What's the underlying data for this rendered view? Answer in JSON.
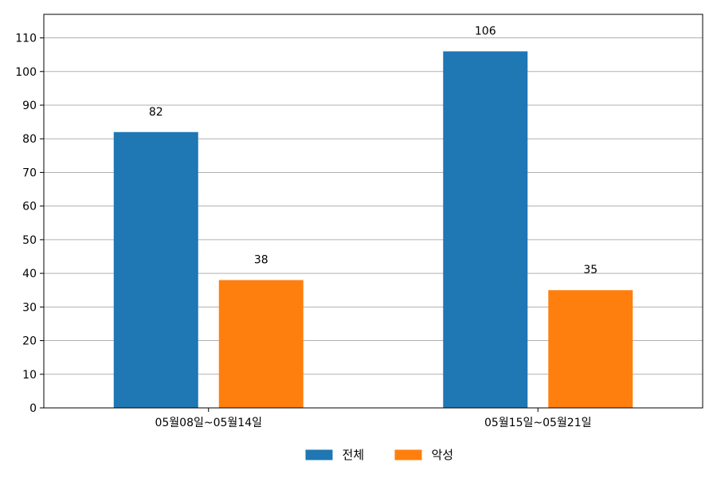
{
  "chart_data": {
    "type": "bar",
    "title": "",
    "xlabel": "",
    "ylabel": "",
    "categories": [
      "05월08일~05월14일",
      "05월15일~05월21일"
    ],
    "series": [
      {
        "name": "전체",
        "values": [
          82,
          106
        ],
        "color": "#1f77b4"
      },
      {
        "name": "악성",
        "values": [
          38,
          35
        ],
        "color": "#ff7f0e"
      }
    ],
    "ylim": [
      0,
      117
    ],
    "yticks": [
      0,
      10,
      20,
      30,
      40,
      50,
      60,
      70,
      80,
      90,
      100,
      110
    ],
    "grid": "horizontal",
    "legend_position": "bottom-center",
    "show_data_labels": true
  }
}
